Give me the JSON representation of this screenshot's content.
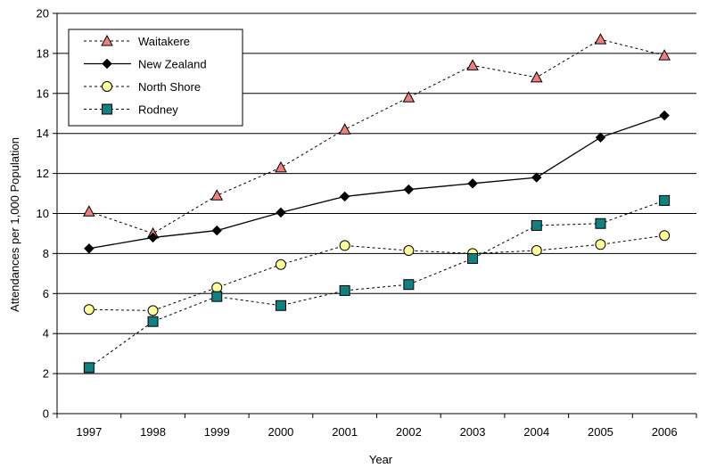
{
  "chart_data": {
    "type": "line",
    "title": "",
    "xlabel": "Year",
    "ylabel": "Attendances per 1,000 Population",
    "categories": [
      "1997",
      "1998",
      "1999",
      "2000",
      "2001",
      "2002",
      "2003",
      "2004",
      "2005",
      "2006"
    ],
    "ylim": [
      0,
      20
    ],
    "yticks": [
      0,
      2,
      4,
      6,
      8,
      10,
      12,
      14,
      16,
      18,
      20
    ],
    "grid": "horizontal",
    "legend_position": "top-left",
    "series": [
      {
        "name": "Waitakere",
        "marker": "triangle",
        "line": "dotted",
        "color": "#f08080",
        "values": [
          10.1,
          9.0,
          10.9,
          12.3,
          14.2,
          15.8,
          17.4,
          16.8,
          18.7,
          17.9
        ]
      },
      {
        "name": "New Zealand",
        "marker": "diamond",
        "line": "solid",
        "color": "#000000",
        "values": [
          8.25,
          8.8,
          9.15,
          10.05,
          10.85,
          11.2,
          11.5,
          11.8,
          13.8,
          14.9
        ]
      },
      {
        "name": "North Shore",
        "marker": "circle",
        "line": "dotted",
        "color": "#ffff99",
        "values": [
          5.2,
          5.15,
          6.3,
          7.45,
          8.4,
          8.15,
          8.0,
          8.15,
          8.45,
          8.9
        ]
      },
      {
        "name": "Rodney",
        "marker": "square",
        "line": "dotted",
        "color": "#108080",
        "values": [
          2.3,
          4.6,
          5.85,
          5.4,
          6.15,
          6.45,
          7.75,
          9.4,
          9.5,
          10.65
        ]
      }
    ]
  }
}
